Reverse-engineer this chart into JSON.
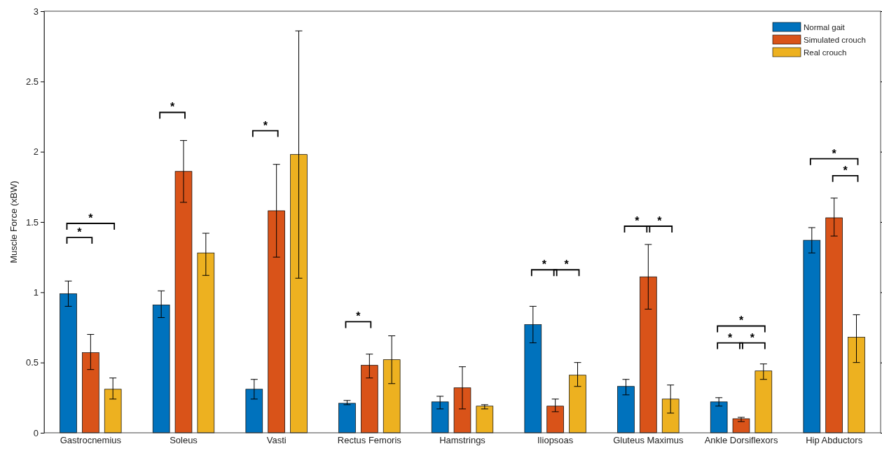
{
  "chart_data": {
    "type": "bar",
    "ylabel": "Muscle Force (xBW)",
    "categories": [
      "Gastrocnemius",
      "Soleus",
      "Vasti",
      "Rectus Femoris",
      "Hamstrings",
      "Iliopsoas",
      "Gluteus Maximus",
      "Ankle Dorsiflexors",
      "Hip Abductors"
    ],
    "series": [
      {
        "name": "Normal gait",
        "color": "#0072bd",
        "values": [
          0.99,
          0.91,
          0.31,
          0.21,
          0.22,
          0.77,
          0.33,
          0.22,
          1.37
        ],
        "errors": [
          [
            0.9,
            1.08
          ],
          [
            0.82,
            1.01
          ],
          [
            0.24,
            0.38
          ],
          [
            0.2,
            0.23
          ],
          [
            0.17,
            0.26
          ],
          [
            0.64,
            0.9
          ],
          [
            0.27,
            0.38
          ],
          [
            0.19,
            0.25
          ],
          [
            1.28,
            1.46
          ]
        ]
      },
      {
        "name": "Simulated crouch",
        "color": "#d95319",
        "values": [
          0.57,
          1.86,
          1.58,
          0.48,
          0.32,
          0.19,
          1.11,
          0.1,
          1.53
        ],
        "errors": [
          [
            0.45,
            0.7
          ],
          [
            1.64,
            2.08
          ],
          [
            1.25,
            1.91
          ],
          [
            0.39,
            0.56
          ],
          [
            0.17,
            0.47
          ],
          [
            0.15,
            0.24
          ],
          [
            0.88,
            1.34
          ],
          [
            0.08,
            0.11
          ],
          [
            1.4,
            1.67
          ]
        ]
      },
      {
        "name": "Real crouch",
        "color": "#edb120",
        "values": [
          0.31,
          1.28,
          1.98,
          0.52,
          0.19,
          0.41,
          0.24,
          0.44,
          0.68
        ],
        "errors": [
          [
            0.24,
            0.39
          ],
          [
            1.12,
            1.42
          ],
          [
            1.1,
            2.86
          ],
          [
            0.35,
            0.69
          ],
          [
            0.17,
            0.2
          ],
          [
            0.33,
            0.5
          ],
          [
            0.14,
            0.34
          ],
          [
            0.38,
            0.49
          ],
          [
            0.5,
            0.84
          ]
        ]
      }
    ],
    "ylim": [
      0,
      3
    ],
    "yticks": [
      0,
      0.5,
      1,
      1.5,
      2,
      2.5,
      3
    ],
    "grid": false,
    "legend": "top right",
    "annotations": [
      "*",
      "*",
      "*",
      "*",
      "*",
      "*",
      "*",
      "*",
      "*",
      "*",
      "*",
      "*",
      "*",
      "*"
    ]
  }
}
